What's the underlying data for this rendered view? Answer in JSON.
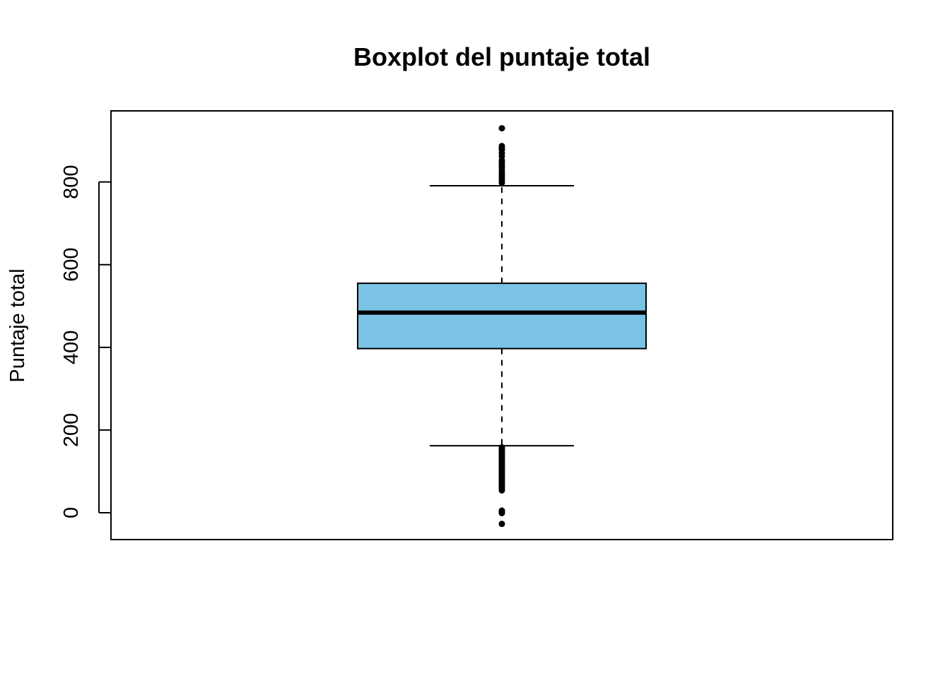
{
  "chart_data": {
    "type": "boxplot",
    "title": "Boxplot del puntaje total",
    "ylabel": "Puntaje total",
    "xlabel": "",
    "ylim": [
      -65,
      972
    ],
    "yticks": [
      0,
      200,
      400,
      600,
      800
    ],
    "ytick_labels": [
      "0",
      "200",
      "400",
      "600",
      "800"
    ],
    "box_color": "#7ac3e4",
    "series": [
      {
        "whisker_low": 162,
        "q1": 397,
        "median": 484,
        "q3": 555,
        "whisker_high": 791,
        "outliers": [
          930,
          887,
          882,
          878,
          870,
          862,
          852,
          846,
          840,
          835,
          828,
          822,
          816,
          810,
          804,
          798,
          158,
          154,
          150,
          146,
          142,
          138,
          134,
          130,
          126,
          122,
          118,
          114,
          110,
          106,
          102,
          98,
          94,
          90,
          86,
          82,
          78,
          74,
          70,
          66,
          62,
          58,
          54,
          5,
          2,
          -1,
          -27
        ]
      }
    ]
  }
}
